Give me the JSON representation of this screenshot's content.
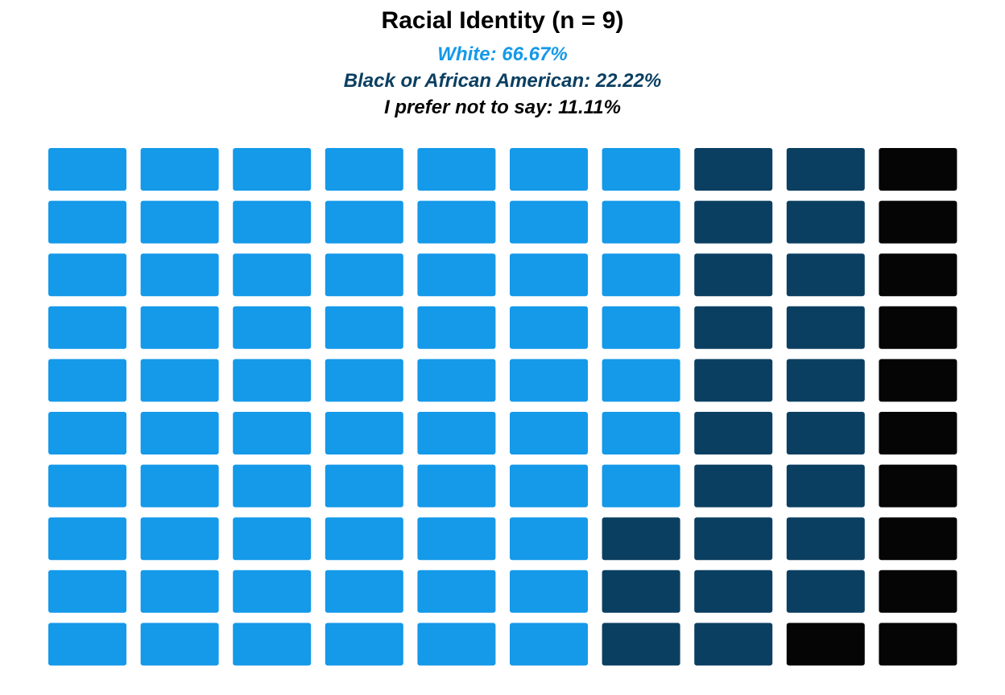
{
  "chart_data": {
    "type": "waffle",
    "title": "Racial Identity (n = 9)",
    "total_cells": 100,
    "columns": 10,
    "rows": 10,
    "fill_order": "column-major, top-to-bottom, left-to-right",
    "series": [
      {
        "name": "White",
        "label": "White: 66.67%",
        "percent": 66.67,
        "cells": 67,
        "color": "#1599E9"
      },
      {
        "name": "Black or African American",
        "label": "Black or African American: 22.22%",
        "percent": 22.22,
        "cells": 22,
        "color": "#0B3F61"
      },
      {
        "name": "I prefer not to say",
        "label": "I prefer not to say: 11.11%",
        "percent": 11.11,
        "cells": 11,
        "color": "#050505"
      }
    ]
  }
}
